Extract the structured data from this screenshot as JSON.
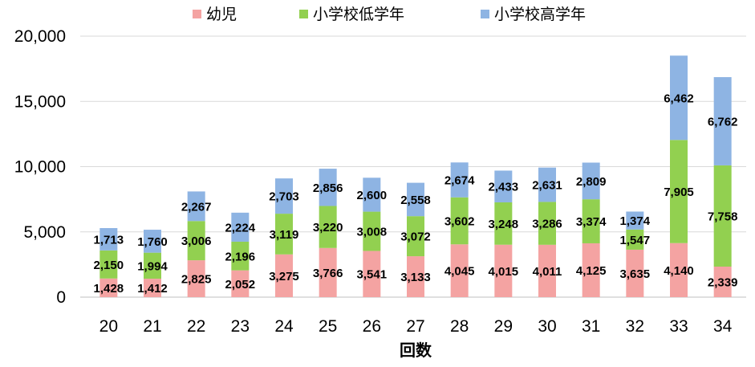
{
  "chart_data": {
    "type": "bar",
    "stacked": true,
    "title": "",
    "xlabel": "回数",
    "ylabel": "",
    "ylim": [
      0,
      20000
    ],
    "yticks": [
      0,
      5000,
      10000,
      15000,
      20000
    ],
    "ytick_labels": [
      "0",
      "5,000",
      "10,000",
      "15,000",
      "20,000"
    ],
    "grid": true,
    "legend": "top",
    "categories": [
      "20",
      "21",
      "22",
      "23",
      "24",
      "25",
      "26",
      "27",
      "28",
      "29",
      "30",
      "31",
      "32",
      "33",
      "34"
    ],
    "series": [
      {
        "name": "幼児",
        "color": "#F4A3A2",
        "values": [
          1428,
          1412,
          2825,
          2052,
          3275,
          3766,
          3541,
          3133,
          4045,
          4015,
          4011,
          4125,
          3635,
          4140,
          2339
        ]
      },
      {
        "name": "小学校低学年",
        "color": "#92D050",
        "values": [
          2150,
          1994,
          3006,
          2196,
          3119,
          3220,
          3008,
          3072,
          3602,
          3248,
          3286,
          3374,
          1547,
          7905,
          7758
        ]
      },
      {
        "name": "小学校高学年",
        "color": "#8EB4E3",
        "values": [
          1713,
          1760,
          2267,
          2224,
          2703,
          2856,
          2600,
          2558,
          2674,
          2433,
          2631,
          2809,
          1374,
          6462,
          6762
        ]
      }
    ]
  }
}
